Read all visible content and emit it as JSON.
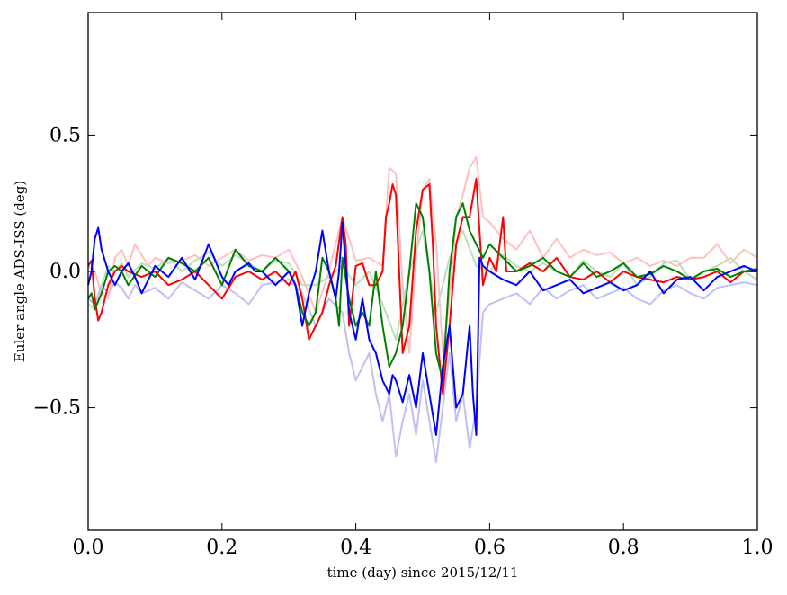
{
  "chart_data": {
    "type": "line",
    "xlabel": "time (day) since 2015/12/11",
    "ylabel": "Euler angle ADS-ISS (deg)",
    "xlim": [
      0.0,
      1.0
    ],
    "ylim": [
      -0.95,
      0.95
    ],
    "xticks": [
      0.0,
      0.2,
      0.4,
      0.6,
      0.8,
      1.0
    ],
    "xtick_labels": [
      "0.0",
      "0.2",
      "0.4",
      "0.6",
      "0.8",
      "1.0"
    ],
    "yticks": [
      -0.5,
      0.0,
      0.5
    ],
    "ytick_labels": [
      "−0.5",
      "0.0",
      "0.5"
    ],
    "grid": false,
    "series": [
      {
        "color": "#ffc0c0",
        "x": [
          0.0,
          0.01,
          0.02,
          0.03,
          0.04,
          0.05,
          0.06,
          0.07,
          0.08,
          0.09,
          0.1,
          0.12,
          0.14,
          0.16,
          0.18,
          0.2,
          0.22,
          0.24,
          0.26,
          0.28,
          0.3,
          0.32,
          0.34,
          0.36,
          0.38,
          0.4,
          0.42,
          0.44,
          0.45,
          0.46,
          0.47,
          0.48,
          0.49,
          0.5,
          0.51,
          0.52,
          0.53,
          0.54,
          0.55,
          0.56,
          0.57,
          0.58,
          0.59,
          0.6,
          0.62,
          0.64,
          0.66,
          0.68,
          0.7,
          0.72,
          0.74,
          0.76,
          0.78,
          0.8,
          0.82,
          0.84,
          0.86,
          0.88,
          0.9,
          0.92,
          0.94,
          0.96,
          0.98,
          1.0
        ],
        "y": [
          0.02,
          0.0,
          -0.08,
          -0.1,
          0.05,
          0.08,
          0.02,
          0.1,
          0.06,
          0.02,
          0.05,
          0.03,
          0.04,
          0.06,
          0.02,
          0.05,
          0.08,
          0.04,
          0.06,
          0.05,
          0.08,
          -0.02,
          -0.15,
          0.0,
          0.2,
          0.04,
          0.05,
          0.02,
          0.38,
          0.36,
          -0.05,
          -0.3,
          0.05,
          0.3,
          0.34,
          0.1,
          -0.3,
          -0.1,
          0.2,
          0.28,
          0.38,
          0.42,
          0.2,
          0.18,
          0.12,
          0.08,
          0.15,
          0.05,
          0.12,
          0.05,
          0.08,
          0.06,
          0.07,
          0.03,
          0.05,
          0.02,
          0.04,
          0.02,
          0.05,
          0.05,
          0.1,
          0.03,
          0.08,
          0.05
        ]
      },
      {
        "color": "#b8e0b8",
        "x": [
          0.0,
          0.01,
          0.02,
          0.03,
          0.04,
          0.05,
          0.06,
          0.08,
          0.1,
          0.12,
          0.14,
          0.16,
          0.18,
          0.2,
          0.22,
          0.24,
          0.26,
          0.28,
          0.3,
          0.32,
          0.34,
          0.36,
          0.38,
          0.4,
          0.42,
          0.44,
          0.46,
          0.48,
          0.5,
          0.52,
          0.54,
          0.56,
          0.58,
          0.6,
          0.62,
          0.64,
          0.66,
          0.68,
          0.7,
          0.72,
          0.74,
          0.76,
          0.78,
          0.8,
          0.82,
          0.84,
          0.86,
          0.88,
          0.9,
          0.92,
          0.94,
          0.96,
          0.98,
          1.0
        ],
        "y": [
          -0.12,
          -0.14,
          -0.05,
          0.02,
          0.0,
          0.03,
          -0.02,
          0.03,
          0.01,
          0.05,
          0.0,
          0.04,
          0.07,
          0.02,
          0.06,
          0.03,
          0.0,
          0.04,
          0.03,
          -0.05,
          -0.05,
          -0.02,
          0.02,
          -0.05,
          0.0,
          -0.12,
          -0.25,
          0.0,
          0.15,
          -0.15,
          0.05,
          0.15,
          0.02,
          0.0,
          0.06,
          0.02,
          0.0,
          0.03,
          0.0,
          -0.02,
          0.04,
          0.0,
          -0.02,
          0.03,
          -0.05,
          -0.02,
          0.03,
          0.04,
          -0.03,
          0.0,
          0.02,
          0.05,
          0.0,
          -0.03
        ]
      },
      {
        "color": "#c0c0f4",
        "x": [
          0.0,
          0.01,
          0.02,
          0.03,
          0.04,
          0.05,
          0.06,
          0.07,
          0.08,
          0.1,
          0.12,
          0.14,
          0.16,
          0.18,
          0.2,
          0.22,
          0.24,
          0.26,
          0.28,
          0.3,
          0.32,
          0.34,
          0.36,
          0.38,
          0.39,
          0.4,
          0.41,
          0.42,
          0.43,
          0.44,
          0.45,
          0.46,
          0.47,
          0.48,
          0.49,
          0.5,
          0.51,
          0.52,
          0.53,
          0.54,
          0.55,
          0.56,
          0.57,
          0.58,
          0.59,
          0.6,
          0.62,
          0.64,
          0.66,
          0.68,
          0.7,
          0.72,
          0.74,
          0.76,
          0.78,
          0.8,
          0.82,
          0.84,
          0.86,
          0.88,
          0.9,
          0.92,
          0.94,
          0.96,
          0.98,
          1.0
        ],
        "y": [
          -0.1,
          -0.12,
          -0.05,
          -0.08,
          -0.04,
          -0.06,
          -0.1,
          -0.05,
          -0.08,
          -0.06,
          -0.1,
          -0.04,
          -0.07,
          -0.1,
          -0.05,
          -0.08,
          -0.12,
          -0.05,
          -0.04,
          -0.03,
          -0.08,
          -0.2,
          -0.1,
          -0.15,
          -0.3,
          -0.4,
          -0.35,
          -0.3,
          -0.45,
          -0.55,
          -0.45,
          -0.68,
          -0.55,
          -0.45,
          -0.6,
          -0.4,
          -0.55,
          -0.7,
          -0.5,
          -0.3,
          -0.55,
          -0.45,
          -0.65,
          -0.5,
          -0.15,
          -0.12,
          -0.1,
          -0.08,
          -0.12,
          -0.06,
          -0.1,
          -0.07,
          -0.05,
          -0.1,
          -0.08,
          -0.06,
          -0.1,
          -0.12,
          -0.07,
          -0.05,
          -0.08,
          -0.1,
          -0.06,
          -0.05,
          -0.04,
          -0.05
        ]
      },
      {
        "color": "#ff0000",
        "x": [
          0.0,
          0.005,
          0.01,
          0.015,
          0.02,
          0.03,
          0.04,
          0.05,
          0.06,
          0.08,
          0.1,
          0.12,
          0.14,
          0.16,
          0.18,
          0.2,
          0.22,
          0.24,
          0.26,
          0.28,
          0.3,
          0.31,
          0.32,
          0.33,
          0.34,
          0.35,
          0.36,
          0.37,
          0.38,
          0.385,
          0.39,
          0.4,
          0.41,
          0.42,
          0.43,
          0.44,
          0.445,
          0.45,
          0.455,
          0.46,
          0.47,
          0.48,
          0.49,
          0.5,
          0.51,
          0.515,
          0.52,
          0.53,
          0.54,
          0.55,
          0.56,
          0.57,
          0.58,
          0.59,
          0.6,
          0.61,
          0.62,
          0.625,
          0.63,
          0.64,
          0.66,
          0.68,
          0.7,
          0.72,
          0.74,
          0.76,
          0.78,
          0.8,
          0.82,
          0.84,
          0.86,
          0.88,
          0.9,
          0.92,
          0.94,
          0.96,
          0.98,
          1.0
        ],
        "y": [
          0.02,
          0.04,
          -0.1,
          -0.18,
          -0.15,
          -0.05,
          0.0,
          0.02,
          0.0,
          -0.02,
          0.0,
          -0.05,
          -0.03,
          0.0,
          -0.05,
          -0.1,
          -0.02,
          0.0,
          -0.03,
          0.0,
          -0.05,
          0.0,
          -0.1,
          -0.25,
          -0.2,
          -0.15,
          -0.05,
          0.02,
          0.2,
          0.1,
          -0.2,
          0.02,
          0.03,
          -0.05,
          -0.05,
          0.0,
          0.2,
          0.25,
          0.32,
          0.28,
          -0.3,
          -0.2,
          0.15,
          0.3,
          0.32,
          0.1,
          -0.2,
          -0.45,
          -0.2,
          0.1,
          0.2,
          0.2,
          0.34,
          -0.05,
          0.05,
          0.0,
          0.2,
          0.0,
          0.0,
          0.0,
          0.03,
          0.0,
          0.05,
          -0.02,
          -0.03,
          0.0,
          -0.04,
          0.0,
          -0.02,
          -0.03,
          -0.04,
          -0.02,
          -0.03,
          -0.02,
          0.0,
          -0.04,
          0.0,
          0.0
        ]
      },
      {
        "color": "#008000",
        "x": [
          0.0,
          0.005,
          0.01,
          0.02,
          0.03,
          0.04,
          0.05,
          0.06,
          0.08,
          0.1,
          0.12,
          0.14,
          0.16,
          0.18,
          0.2,
          0.22,
          0.24,
          0.26,
          0.28,
          0.3,
          0.31,
          0.32,
          0.33,
          0.34,
          0.35,
          0.36,
          0.37,
          0.375,
          0.38,
          0.39,
          0.4,
          0.41,
          0.42,
          0.43,
          0.44,
          0.45,
          0.46,
          0.47,
          0.48,
          0.49,
          0.5,
          0.51,
          0.52,
          0.53,
          0.54,
          0.55,
          0.56,
          0.57,
          0.58,
          0.59,
          0.6,
          0.62,
          0.64,
          0.66,
          0.68,
          0.7,
          0.72,
          0.74,
          0.76,
          0.78,
          0.8,
          0.82,
          0.84,
          0.86,
          0.88,
          0.9,
          0.92,
          0.94,
          0.96,
          0.98,
          1.0
        ],
        "y": [
          -0.1,
          -0.08,
          -0.14,
          -0.08,
          0.0,
          0.02,
          0.0,
          -0.05,
          0.02,
          -0.02,
          0.05,
          0.03,
          0.0,
          0.05,
          -0.05,
          0.08,
          0.02,
          0.0,
          0.05,
          0.0,
          -0.05,
          -0.15,
          -0.2,
          -0.15,
          0.05,
          0.0,
          -0.1,
          -0.2,
          0.05,
          -0.1,
          -0.2,
          -0.15,
          -0.2,
          0.0,
          -0.2,
          -0.35,
          -0.3,
          -0.2,
          0.0,
          0.25,
          0.2,
          0.0,
          -0.3,
          -0.4,
          0.0,
          0.2,
          0.25,
          0.15,
          0.1,
          0.05,
          0.1,
          0.05,
          0.0,
          0.02,
          0.05,
          0.0,
          -0.02,
          0.03,
          -0.02,
          0.0,
          0.03,
          -0.02,
          -0.01,
          0.02,
          0.0,
          -0.03,
          0.0,
          0.01,
          -0.02,
          0.0,
          0.01
        ]
      },
      {
        "color": "#0000ff",
        "x": [
          0.0,
          0.005,
          0.01,
          0.015,
          0.02,
          0.03,
          0.04,
          0.05,
          0.06,
          0.07,
          0.08,
          0.1,
          0.11,
          0.12,
          0.14,
          0.16,
          0.18,
          0.2,
          0.21,
          0.22,
          0.24,
          0.25,
          0.26,
          0.28,
          0.3,
          0.31,
          0.32,
          0.33,
          0.34,
          0.35,
          0.36,
          0.37,
          0.375,
          0.38,
          0.39,
          0.4,
          0.41,
          0.42,
          0.43,
          0.44,
          0.45,
          0.455,
          0.46,
          0.47,
          0.48,
          0.49,
          0.5,
          0.51,
          0.52,
          0.53,
          0.54,
          0.55,
          0.56,
          0.57,
          0.575,
          0.58,
          0.585,
          0.59,
          0.6,
          0.62,
          0.64,
          0.66,
          0.68,
          0.7,
          0.72,
          0.74,
          0.76,
          0.78,
          0.8,
          0.82,
          0.84,
          0.86,
          0.88,
          0.9,
          0.92,
          0.94,
          0.96,
          0.98,
          1.0
        ],
        "y": [
          -0.05,
          0.0,
          0.12,
          0.16,
          0.08,
          0.0,
          -0.05,
          0.0,
          0.03,
          -0.02,
          -0.08,
          0.02,
          0.0,
          -0.02,
          0.05,
          -0.03,
          0.1,
          -0.02,
          -0.05,
          0.0,
          0.03,
          0.0,
          0.0,
          -0.05,
          0.0,
          -0.05,
          -0.2,
          -0.08,
          0.0,
          0.15,
          0.0,
          -0.1,
          0.0,
          0.18,
          -0.15,
          -0.25,
          -0.1,
          -0.25,
          -0.3,
          -0.4,
          -0.45,
          -0.38,
          -0.4,
          -0.48,
          -0.38,
          -0.5,
          -0.3,
          -0.45,
          -0.6,
          -0.35,
          -0.2,
          -0.5,
          -0.45,
          -0.2,
          -0.45,
          -0.6,
          0.05,
          0.02,
          0.0,
          -0.03,
          -0.05,
          0.0,
          -0.07,
          -0.05,
          -0.03,
          -0.08,
          -0.06,
          -0.04,
          -0.07,
          -0.05,
          0.0,
          -0.08,
          -0.03,
          -0.02,
          -0.07,
          -0.02,
          0.0,
          0.02,
          0.0
        ]
      }
    ]
  }
}
